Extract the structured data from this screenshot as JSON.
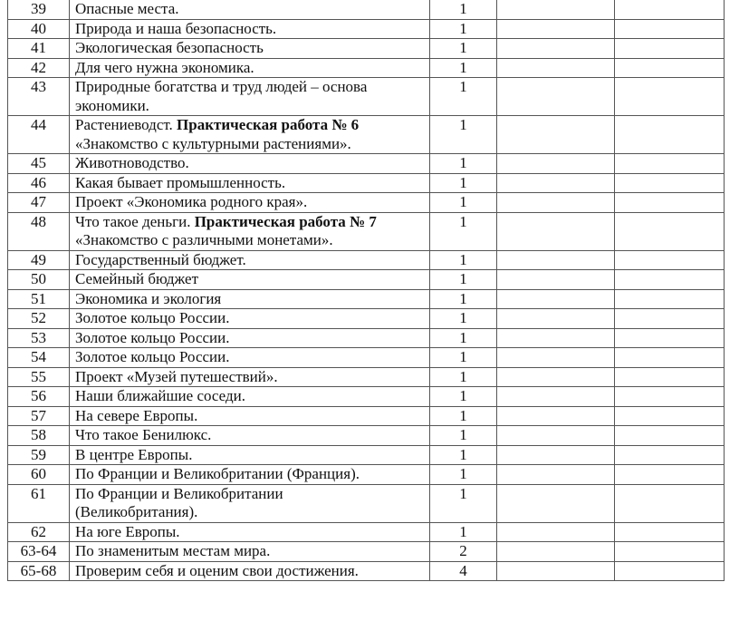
{
  "rows": [
    {
      "num": "39",
      "lines": [
        [
          {
            "t": "Опасные места."
          }
        ]
      ],
      "hours": "1"
    },
    {
      "num": "40",
      "lines": [
        [
          {
            "t": "Природа и наша безопасность."
          }
        ]
      ],
      "hours": "1"
    },
    {
      "num": "41",
      "lines": [
        [
          {
            "t": "Экологическая безопасность"
          }
        ]
      ],
      "hours": "1"
    },
    {
      "num": "42",
      "lines": [
        [
          {
            "t": "Для чего нужна экономика."
          }
        ]
      ],
      "hours": "1"
    },
    {
      "num": "43",
      "lines": [
        [
          {
            "t": "Природные богатства и труд людей – основа"
          }
        ],
        [
          {
            "t": "экономики."
          }
        ]
      ],
      "hours": "1"
    },
    {
      "num": "44",
      "lines": [
        [
          {
            "t": "Растениеводст. "
          },
          {
            "t": "Практическая работа № 6",
            "b": true
          }
        ],
        [
          {
            "t": "«Знакомство с культурными растениями»."
          }
        ]
      ],
      "hours": "1"
    },
    {
      "num": "45",
      "lines": [
        [
          {
            "t": "Животноводство."
          }
        ]
      ],
      "hours": "1"
    },
    {
      "num": "46",
      "lines": [
        [
          {
            "t": "Какая бывает промышленность."
          }
        ]
      ],
      "hours": "1"
    },
    {
      "num": "47",
      "lines": [
        [
          {
            "t": "Проект «Экономика родного края»."
          }
        ]
      ],
      "hours": "1"
    },
    {
      "num": "48",
      "lines": [
        [
          {
            "t": "Что такое деньги. "
          },
          {
            "t": "Практическая работа № 7",
            "b": true
          }
        ],
        [
          {
            "t": "«Знакомство с различными монетами»."
          }
        ]
      ],
      "hours": "1"
    },
    {
      "num": "49",
      "lines": [
        [
          {
            "t": "Государственный бюджет."
          }
        ]
      ],
      "hours": "1"
    },
    {
      "num": "50",
      "lines": [
        [
          {
            "t": "Семейный бюджет"
          }
        ]
      ],
      "hours": "1"
    },
    {
      "num": "51",
      "lines": [
        [
          {
            "t": "Экономика и экология"
          }
        ]
      ],
      "hours": "1"
    },
    {
      "num": "52",
      "lines": [
        [
          {
            "t": "Золотое кольцо России."
          }
        ]
      ],
      "hours": "1"
    },
    {
      "num": "53",
      "lines": [
        [
          {
            "t": "Золотое кольцо России."
          }
        ]
      ],
      "hours": "1"
    },
    {
      "num": "54",
      "lines": [
        [
          {
            "t": "Золотое кольцо России."
          }
        ]
      ],
      "hours": "1"
    },
    {
      "num": "55",
      "lines": [
        [
          {
            "t": "Проект «Музей путешествий»."
          }
        ]
      ],
      "hours": "1"
    },
    {
      "num": "56",
      "lines": [
        [
          {
            "t": "Наши ближайшие соседи."
          }
        ]
      ],
      "hours": "1"
    },
    {
      "num": "57",
      "lines": [
        [
          {
            "t": "На севере Европы."
          }
        ]
      ],
      "hours": "1"
    },
    {
      "num": "58",
      "lines": [
        [
          {
            "t": "Что такое Бенилюкс."
          }
        ]
      ],
      "hours": "1"
    },
    {
      "num": "59",
      "lines": [
        [
          {
            "t": "В центре Европы."
          }
        ]
      ],
      "hours": "1"
    },
    {
      "num": "60",
      "lines": [
        [
          {
            "t": "По Франции и Великобритании (Франция)."
          }
        ]
      ],
      "hours": "1"
    },
    {
      "num": "61",
      "lines": [
        [
          {
            "t": "По Франции и Великобритании"
          }
        ],
        [
          {
            "t": "(Великобритания)."
          }
        ]
      ],
      "hours": "1"
    },
    {
      "num": "62",
      "lines": [
        [
          {
            "t": "На юге Европы."
          }
        ]
      ],
      "hours": "1"
    },
    {
      "num": "63-64",
      "lines": [
        [
          {
            "t": "По знаменитым местам мира."
          }
        ]
      ],
      "hours": "2"
    },
    {
      "num": "65-68",
      "lines": [
        [
          {
            "t": "Проверим себя и оценим свои достижения."
          }
        ]
      ],
      "hours": "4"
    }
  ]
}
